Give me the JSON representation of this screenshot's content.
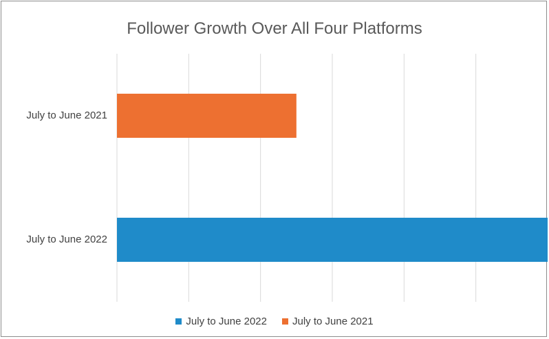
{
  "chart_data": {
    "type": "bar",
    "orientation": "horizontal",
    "title": "Follower Growth Over All Four Platforms",
    "categories": [
      "July to June 2021",
      "July to June 2022"
    ],
    "series": [
      {
        "name": "July to June 2021",
        "color": "#ED7031",
        "values": [
          2.5,
          null
        ]
      },
      {
        "name": "July to June 2022",
        "color": "#1F8BC9",
        "values": [
          null,
          6
        ]
      }
    ],
    "xlim": [
      0,
      6
    ],
    "grid": true,
    "legend_placement": "bottom",
    "legend": [
      "July to June 2022",
      "July to June 2021"
    ]
  }
}
